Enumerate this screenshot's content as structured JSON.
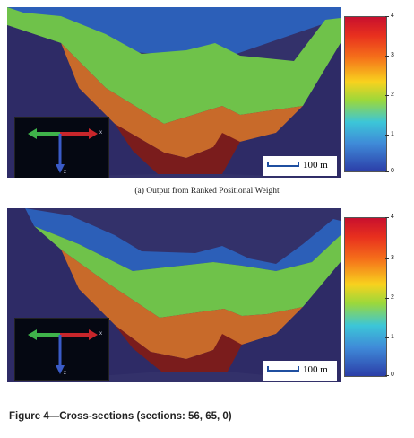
{
  "figure": {
    "caption_a": "(a) Output from Ranked Positional Weight",
    "caption": "Figure 4—Cross-sections (sections: 56, 65, 0)"
  },
  "panels": [
    {
      "scale_label": "100 m",
      "axis": {
        "x": "x",
        "z": "z"
      },
      "colorbar_ticks": [
        "4",
        "3",
        "2",
        "1",
        "0"
      ]
    },
    {
      "scale_label": "100 m",
      "axis": {
        "x": "x",
        "z": "z"
      },
      "colorbar_ticks": [
        "4",
        "3",
        "2",
        "1",
        "0"
      ]
    }
  ],
  "colors": {
    "background": "#33316a",
    "phase_0": "#2c5fb8",
    "phase_1": "#6fc24a",
    "phase_2": "#c86a2a",
    "phase_3": "#7a1c1c",
    "phase_4": "#6a1414"
  }
}
